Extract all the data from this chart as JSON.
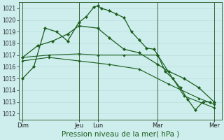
{
  "bg_color": "#cdeeed",
  "grid_color": "#b8dede",
  "line_color": "#1a5c1a",
  "marker_color": "#1a5c1a",
  "xlabel": "Pression niveau de la mer( hPa )",
  "xlabel_fontsize": 7.5,
  "ylim": [
    1011.5,
    1021.5
  ],
  "yticks": [
    1012,
    1013,
    1014,
    1015,
    1016,
    1017,
    1018,
    1019,
    1020,
    1021
  ],
  "xlim": [
    0,
    27
  ],
  "xtick_labels": [
    "Dim",
    "Jeu",
    "Lun",
    "Mar",
    "Mer"
  ],
  "xtick_positions": [
    0.5,
    8,
    10.5,
    18.5,
    26
  ],
  "vlines": [
    0.5,
    8,
    10.5,
    18.5,
    26
  ],
  "series1": {
    "x": [
      0.5,
      2,
      3.5,
      5,
      6.5,
      8,
      9,
      10,
      10.5,
      11,
      12,
      13,
      14,
      15,
      16,
      17,
      18,
      18.5,
      19.5,
      20.5,
      21.5,
      22.5,
      23.5,
      24.5,
      25.5
    ],
    "y": [
      1015.0,
      1016.0,
      1019.3,
      1019.0,
      1018.2,
      1019.8,
      1020.3,
      1021.1,
      1021.2,
      1021.0,
      1020.8,
      1020.5,
      1020.2,
      1019.0,
      1018.3,
      1017.6,
      1017.5,
      1017.0,
      1015.6,
      1015.0,
      1014.2,
      1013.2,
      1012.3,
      1013.0,
      1013.0
    ]
  },
  "series2": {
    "x": [
      0.5,
      2.5,
      4.5,
      6.5,
      8,
      10.5,
      12,
      14,
      16,
      18.5,
      20,
      22,
      24,
      26
    ],
    "y": [
      1016.8,
      1017.8,
      1018.2,
      1018.8,
      1019.5,
      1019.3,
      1018.5,
      1017.5,
      1017.2,
      1016.2,
      1015.6,
      1015.0,
      1014.2,
      1013.0
    ]
  },
  "series3": {
    "x": [
      0.5,
      4,
      8,
      10.5,
      14,
      18.5,
      22,
      26
    ],
    "y": [
      1016.8,
      1017.0,
      1017.1,
      1017.0,
      1017.0,
      1017.0,
      1013.5,
      1012.5
    ]
  },
  "series4": {
    "x": [
      0.5,
      4,
      8,
      12,
      16,
      20,
      24,
      26
    ],
    "y": [
      1016.5,
      1016.8,
      1016.5,
      1016.2,
      1015.8,
      1014.5,
      1013.3,
      1012.8
    ]
  }
}
